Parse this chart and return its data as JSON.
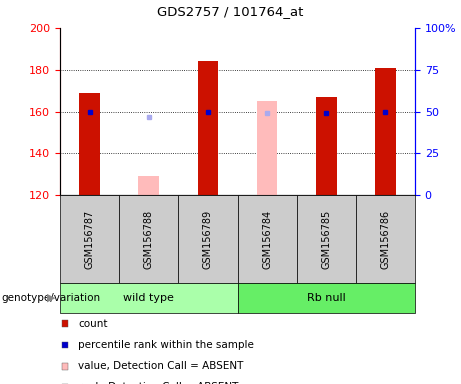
{
  "title": "GDS2757 / 101764_at",
  "samples": [
    "GSM156787",
    "GSM156788",
    "GSM156789",
    "GSM156784",
    "GSM156785",
    "GSM156786"
  ],
  "ylim_left": [
    120,
    200
  ],
  "ylim_right": [
    0,
    100
  ],
  "yticks_left": [
    120,
    140,
    160,
    180,
    200
  ],
  "yticks_right": [
    0,
    25,
    50,
    75,
    100
  ],
  "ytick_labels_right": [
    "0",
    "25",
    "50",
    "75",
    "100%"
  ],
  "bars": [
    {
      "sample": "GSM156787",
      "value": 169,
      "percentile": 50,
      "absent": false
    },
    {
      "sample": "GSM156788",
      "value": 129,
      "percentile": 47,
      "absent": true
    },
    {
      "sample": "GSM156789",
      "value": 184,
      "percentile": 50,
      "absent": false
    },
    {
      "sample": "GSM156784",
      "value": 165,
      "percentile": 49,
      "absent": true
    },
    {
      "sample": "GSM156785",
      "value": 167,
      "percentile": 49,
      "absent": false
    },
    {
      "sample": "GSM156786",
      "value": 181,
      "percentile": 50,
      "absent": false
    }
  ],
  "bar_color_present": "#cc1100",
  "bar_color_absent": "#ffbbbb",
  "dot_color_present": "#0000cc",
  "dot_color_absent": "#aaaaee",
  "bar_width": 0.35,
  "ybase": 120,
  "group_info": [
    {
      "name": "wild type",
      "start": 0,
      "end": 3,
      "color": "#aaffaa"
    },
    {
      "name": "Rb null",
      "start": 3,
      "end": 6,
      "color": "#66ee66"
    }
  ],
  "legend": [
    {
      "label": "count",
      "color": "#cc1100"
    },
    {
      "label": "percentile rank within the sample",
      "color": "#0000cc"
    },
    {
      "label": "value, Detection Call = ABSENT",
      "color": "#ffbbbb"
    },
    {
      "label": "rank, Detection Call = ABSENT",
      "color": "#aaaaee"
    }
  ],
  "genotype_label": "genotype/variation",
  "tick_label_bg": "#cccccc",
  "plot_bg": "#ffffff"
}
